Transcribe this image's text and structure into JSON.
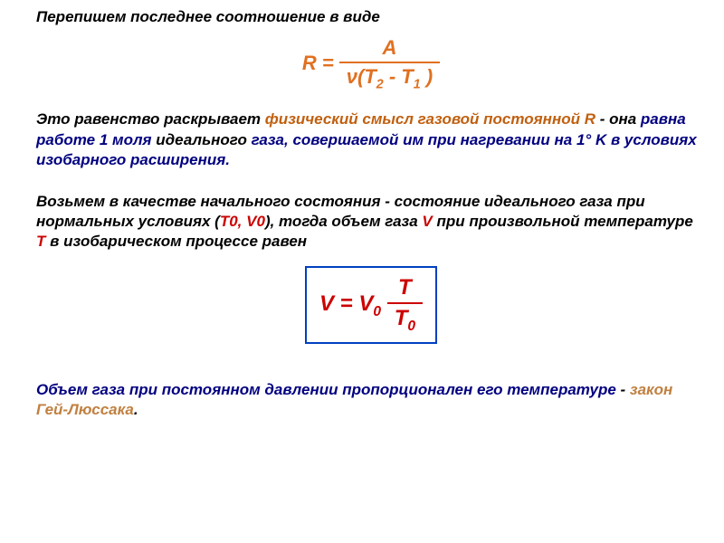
{
  "para1": "Перепишем последнее соотношение в виде",
  "formula1": {
    "lhs": "R",
    "eq": " = ",
    "numerator": "A",
    "den_pre": "ν(T",
    "den_sub1": "2",
    "den_mid": " - T",
    "den_sub2": "1",
    "den_post": " )",
    "color": "#e07020",
    "fontsize_pt": 22
  },
  "para2": {
    "t1": "Это равенство раскрывает ",
    "t2": "физический смысл газовой постоянной R",
    "t3": " - она ",
    "t4": "равна работе 1 моля",
    "t5": " идеального ",
    "t6": "газа, совершаемой им при нагревании на  1° K  в условиях изобарного расширения."
  },
  "para3": {
    "t1": "Возьмем в качестве начального состояния - состояние идеального газа при нормальных условиях (",
    "t2": "T0, V0",
    "t3": "), тогда объем газа ",
    "t4": "V",
    "t5": " при произвольной температуре ",
    "t6": "T",
    "t7": " в изобарическом процессе равен"
  },
  "formula2": {
    "lhs1": "V",
    "eq": " = ",
    "lhs2_pre": "V",
    "lhs2_sub": "0",
    "sp": " ",
    "numerator": "T",
    "den_pre": "T",
    "den_sub": "0",
    "color": "#cc0000",
    "border_color": "#0040c0",
    "fontsize_pt": 24
  },
  "para4": {
    "t1": "Объем газа при постоянном давлении пропорционален его температуре ",
    "t2": "  -  ",
    "t3": "закон Гей-Люссака",
    "t4": "."
  },
  "style": {
    "background": "#ffffff",
    "text_navy": "#000080",
    "text_black": "#000000",
    "text_orange": "#e07020",
    "text_red": "#cc0000",
    "text_law": "#c08040",
    "body_fontsize_pt": 17,
    "italic": true,
    "bold": true
  }
}
